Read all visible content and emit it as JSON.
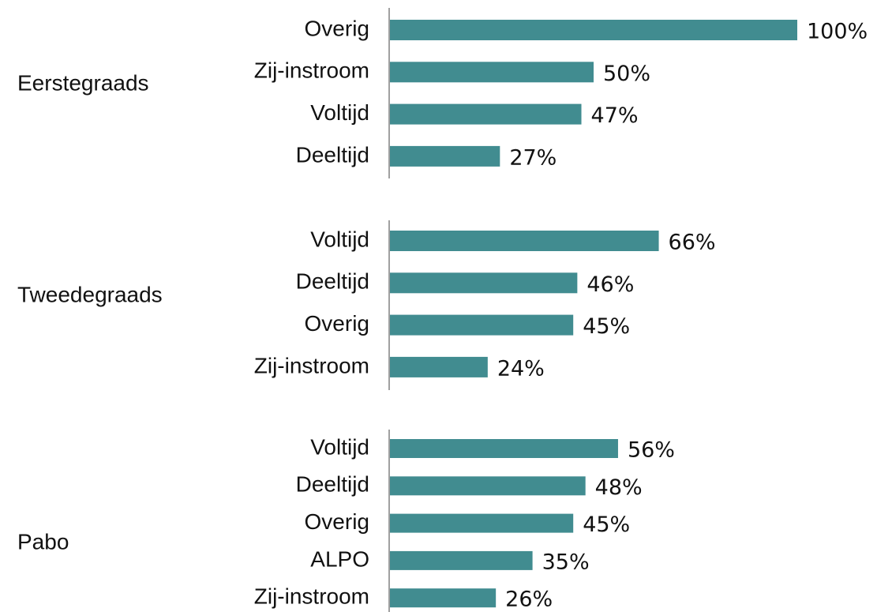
{
  "chart_data": {
    "type": "bar",
    "color": "#418c90",
    "xlim": [
      0,
      100
    ],
    "groups": [
      {
        "name": "Eerstegraads",
        "categories": [
          "Overig",
          "Zij-instroom",
          "Voltijd",
          "Deeltijd"
        ],
        "values": [
          100,
          50,
          47,
          27
        ],
        "value_labels": [
          "100%",
          "50%",
          "47%",
          "27%"
        ]
      },
      {
        "name": "Tweedegraads",
        "categories": [
          "Voltijd",
          "Deeltijd",
          "Overig",
          "Zij-instroom"
        ],
        "values": [
          66,
          46,
          45,
          24
        ],
        "value_labels": [
          "66%",
          "46%",
          "45%",
          "24%"
        ]
      },
      {
        "name": "Pabo",
        "categories": [
          "Voltijd",
          "Deeltijd",
          "Overig",
          "ALPO",
          "Zij-instroom"
        ],
        "values": [
          56,
          48,
          45,
          35,
          26
        ],
        "value_labels": [
          "56%",
          "48%",
          "45%",
          "35%",
          "26%"
        ]
      }
    ]
  }
}
